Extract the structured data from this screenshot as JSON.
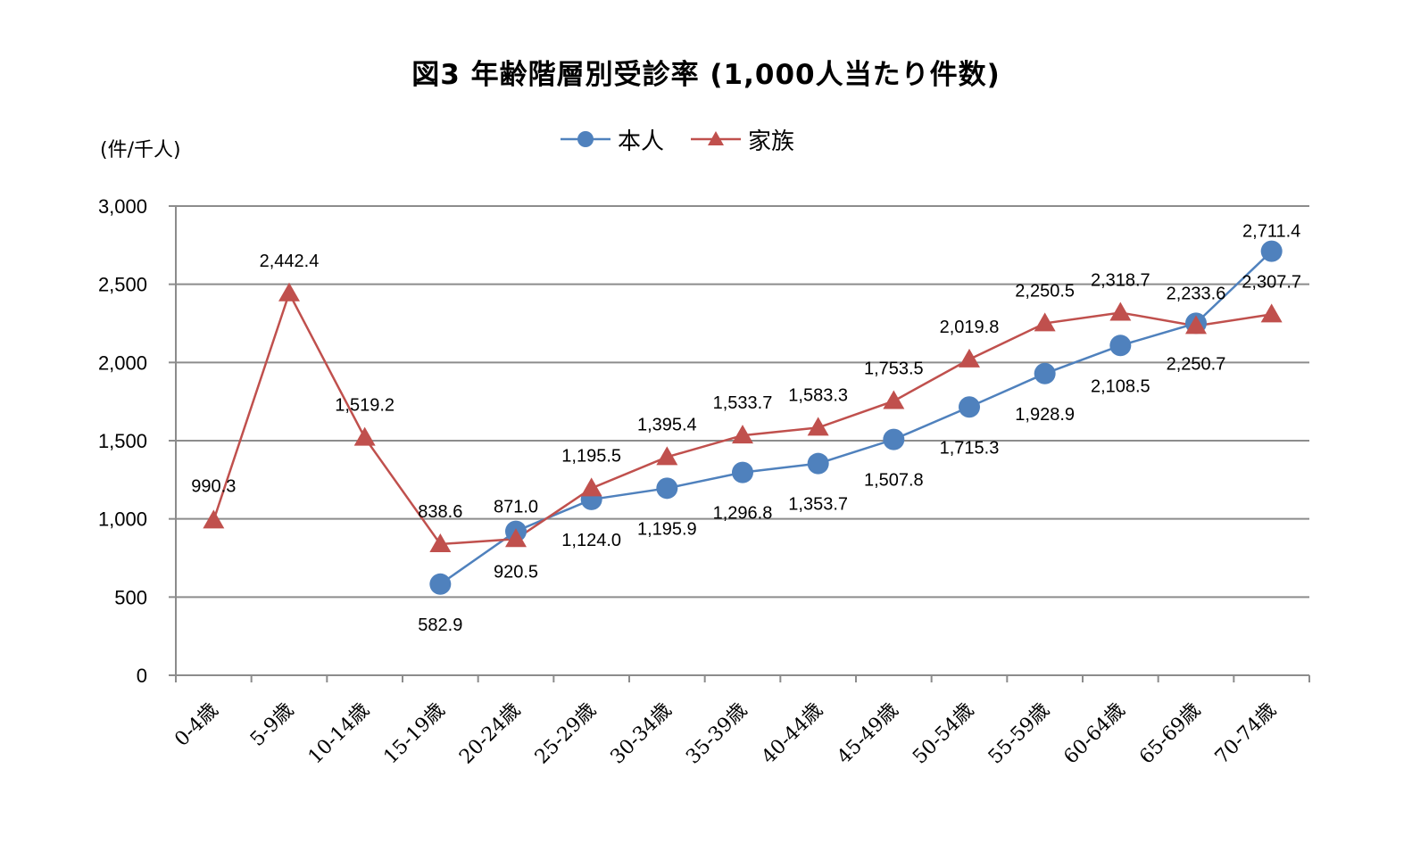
{
  "chart_data": {
    "type": "line",
    "title": "図3 年齢階層別受診率 (1,000人当たり件数)",
    "ylabel": "(件/千人)",
    "xlabel": "",
    "ylim": [
      0,
      3000
    ],
    "yticks": [
      0,
      500,
      1000,
      1500,
      2000,
      2500,
      3000
    ],
    "ytick_labels": [
      "0",
      "500",
      "1,000",
      "1,500",
      "2,000",
      "2,500",
      "3,000"
    ],
    "grid": true,
    "legend_position": "top-center",
    "categories": [
      "0-4歳",
      "5-9歳",
      "10-14歳",
      "15-19歳",
      "20-24歳",
      "25-29歳",
      "30-34歳",
      "35-39歳",
      "40-44歳",
      "45-49歳",
      "50-54歳",
      "55-59歳",
      "60-64歳",
      "65-69歳",
      "70-74歳"
    ],
    "series": [
      {
        "name": "本人",
        "color": "#4F81BD",
        "marker": "circle",
        "values": [
          null,
          null,
          null,
          582.9,
          920.5,
          1124.0,
          1195.9,
          1296.8,
          1353.7,
          1507.8,
          1715.3,
          1928.9,
          2108.5,
          2250.7,
          2711.4
        ],
        "labels": [
          null,
          null,
          null,
          "582.9",
          "920.5",
          "1,124.0",
          "1,195.9",
          "1,296.8",
          "1,353.7",
          "1,507.8",
          "1,715.3",
          "1,928.9",
          "2,108.5",
          "2,250.7",
          "2,711.4"
        ]
      },
      {
        "name": "家族",
        "color": "#C0504D",
        "marker": "triangle",
        "values": [
          990.3,
          2442.4,
          1519.2,
          838.6,
          871.0,
          1195.5,
          1395.4,
          1533.7,
          1583.3,
          1753.5,
          2019.8,
          2250.5,
          2318.7,
          2233.6,
          2307.7
        ],
        "labels": [
          "990.3",
          "2,442.4",
          "1,519.2",
          "838.6",
          "871.0",
          "1,195.5",
          "1,395.4",
          "1,533.7",
          "1,583.3",
          "1,753.5",
          "2,019.8",
          "2,250.5",
          "2,318.7",
          "2,233.6",
          "2,307.7"
        ]
      }
    ]
  }
}
